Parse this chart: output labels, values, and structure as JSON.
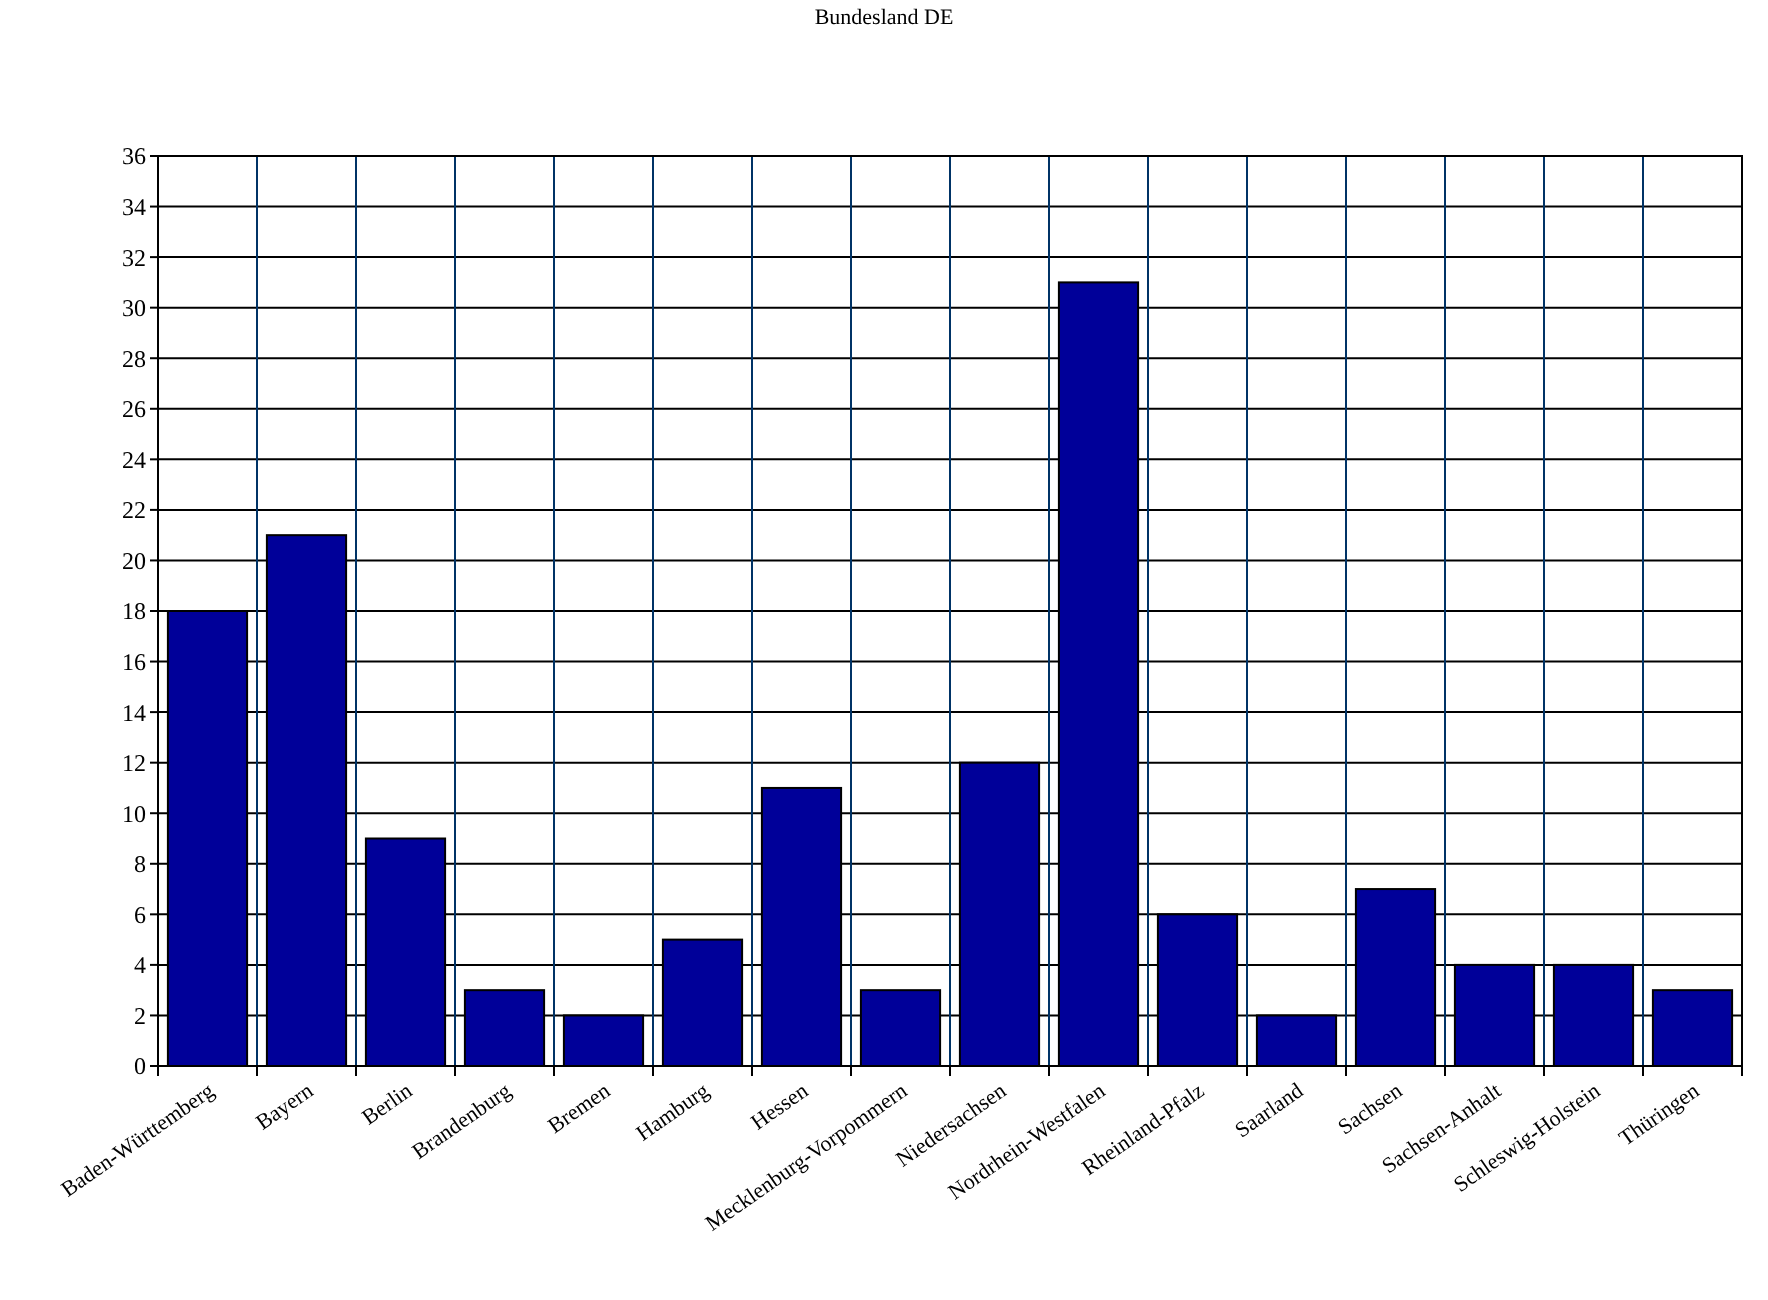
{
  "chart_data": {
    "type": "bar",
    "title": "Bundesland DE",
    "categories": [
      "Baden-Württemberg",
      "Bayern",
      "Berlin",
      "Brandenburg",
      "Bremen",
      "Hamburg",
      "Hessen",
      "Mecklenburg-Vorpommern",
      "Niedersachsen",
      "Nordrhein-Westfalen",
      "Rheinland-Pfalz",
      "Saarland",
      "Sachsen",
      "Sachsen-Anhalt",
      "Schleswig-Holstein",
      "Thüringen"
    ],
    "values": [
      18,
      21,
      9,
      3,
      2,
      5,
      11,
      3,
      12,
      31,
      6,
      2,
      7,
      4,
      4,
      3
    ],
    "color": "#000099",
    "ylim": [
      0,
      36
    ],
    "yticks": [
      0,
      2,
      4,
      6,
      8,
      10,
      12,
      14,
      16,
      18,
      20,
      22,
      24,
      26,
      28,
      30,
      32,
      34,
      36
    ],
    "grid": true
  }
}
